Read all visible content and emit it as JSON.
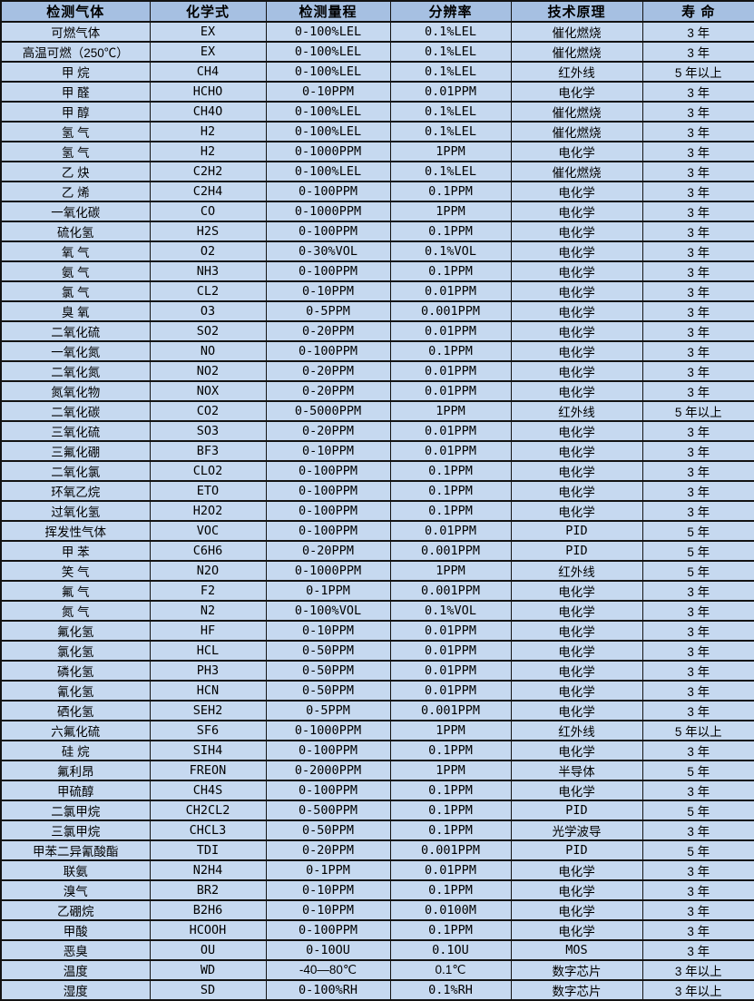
{
  "colors": {
    "header_bg": "#a6c0e2",
    "row_bg": "#c6d9f0",
    "border": "#131313"
  },
  "table": {
    "headers": [
      "检测气体",
      "化学式",
      "检测量程",
      "分辨率",
      "技术原理",
      "寿 命"
    ],
    "rows": [
      [
        "可燃气体",
        "EX",
        "0-100%LEL",
        "0.1%LEL",
        "催化燃烧",
        "3 年"
      ],
      [
        "高温可燃（250℃）",
        "EX",
        "0-100%LEL",
        "0.1%LEL",
        "催化燃烧",
        "3 年"
      ],
      [
        "甲 烷",
        "CH4",
        "0-100%LEL",
        "0.1%LEL",
        "红外线",
        "5 年以上"
      ],
      [
        "甲 醛",
        "HCHO",
        "0-10PPM",
        "0.01PPM",
        "电化学",
        "3 年"
      ],
      [
        "甲 醇",
        "CH4O",
        "0-100%LEL",
        "0.1%LEL",
        "催化燃烧",
        "3 年"
      ],
      [
        "氢 气",
        "H2",
        "0-100%LEL",
        "0.1%LEL",
        "催化燃烧",
        "3 年"
      ],
      [
        "氢 气",
        "H2",
        "0-1000PPM",
        "1PPM",
        "电化学",
        "3 年"
      ],
      [
        "乙 炔",
        "C2H2",
        "0-100%LEL",
        "0.1%LEL",
        "催化燃烧",
        "3 年"
      ],
      [
        "乙 烯",
        "C2H4",
        "0-100PPM",
        "0.1PPM",
        "电化学",
        "3 年"
      ],
      [
        "一氧化碳",
        "CO",
        "0-1000PPM",
        "1PPM",
        "电化学",
        "3 年"
      ],
      [
        "硫化氢",
        "H2S",
        "0-100PPM",
        "0.1PPM",
        "电化学",
        "3 年"
      ],
      [
        "氧 气",
        "O2",
        "0-30%VOL",
        "0.1%VOL",
        "电化学",
        "3 年"
      ],
      [
        "氨 气",
        "NH3",
        "0-100PPM",
        "0.1PPM",
        "电化学",
        "3 年"
      ],
      [
        "氯 气",
        "CL2",
        "0-10PPM",
        "0.01PPM",
        "电化学",
        "3 年"
      ],
      [
        "臭 氧",
        "O3",
        "0-5PPM",
        "0.001PPM",
        "电化学",
        "3 年"
      ],
      [
        "二氧化硫",
        "SO2",
        "0-20PPM",
        "0.01PPM",
        "电化学",
        "3 年"
      ],
      [
        "一氧化氮",
        "NO",
        "0-100PPM",
        "0.1PPM",
        "电化学",
        "3 年"
      ],
      [
        "二氧化氮",
        "NO2",
        "0-20PPM",
        "0.01PPM",
        "电化学",
        "3 年"
      ],
      [
        "氮氧化物",
        "NOX",
        "0-20PPM",
        "0.01PPM",
        "电化学",
        "3 年"
      ],
      [
        "二氧化碳",
        "CO2",
        "0-5000PPM",
        "1PPM",
        "红外线",
        "5 年以上"
      ],
      [
        "三氧化硫",
        "SO3",
        "0-20PPM",
        "0.01PPM",
        "电化学",
        "3 年"
      ],
      [
        "三氟化硼",
        "BF3",
        "0-10PPM",
        "0.01PPM",
        "电化学",
        "3 年"
      ],
      [
        "二氧化氯",
        "CLO2",
        "0-100PPM",
        "0.1PPM",
        "电化学",
        "3 年"
      ],
      [
        "环氧乙烷",
        "ETO",
        "0-100PPM",
        "0.1PPM",
        "电化学",
        "3 年"
      ],
      [
        "过氧化氢",
        "H2O2",
        "0-100PPM",
        "0.1PPM",
        "电化学",
        "3 年"
      ],
      [
        "挥发性气体",
        "VOC",
        "0-100PPM",
        "0.01PPM",
        "PID",
        "5 年"
      ],
      [
        "甲 苯",
        "C6H6",
        "0-20PPM",
        "0.001PPM",
        "PID",
        "5 年"
      ],
      [
        "笑 气",
        "N2O",
        "0-1000PPM",
        "1PPM",
        "红外线",
        "5 年"
      ],
      [
        "氟 气",
        "F2",
        "0-1PPM",
        "0.001PPM",
        "电化学",
        "3 年"
      ],
      [
        "氮 气",
        "N2",
        "0-100%VOL",
        "0.1%VOL",
        "电化学",
        "3 年"
      ],
      [
        "氟化氢",
        "HF",
        "0-10PPM",
        "0.01PPM",
        "电化学",
        "3 年"
      ],
      [
        "氯化氢",
        "HCL",
        "0-50PPM",
        "0.01PPM",
        "电化学",
        "3 年"
      ],
      [
        "磷化氢",
        "PH3",
        "0-50PPM",
        "0.01PPM",
        "电化学",
        "3 年"
      ],
      [
        "氰化氢",
        "HCN",
        "0-50PPM",
        "0.01PPM",
        "电化学",
        "3 年"
      ],
      [
        "硒化氢",
        "SEH2",
        "0-5PPM",
        "0.001PPM",
        "电化学",
        "3 年"
      ],
      [
        "六氟化硫",
        "SF6",
        "0-1000PPM",
        "1PPM",
        "红外线",
        "5 年以上"
      ],
      [
        "硅 烷",
        "SIH4",
        "0-100PPM",
        "0.1PPM",
        "电化学",
        "3 年"
      ],
      [
        "氟利昂",
        "FREON",
        "0-2000PPM",
        "1PPM",
        "半导体",
        "5 年"
      ],
      [
        "甲硫醇",
        "CH4S",
        "0-100PPM",
        "0.1PPM",
        "电化学",
        "3 年"
      ],
      [
        "二氯甲烷",
        "CH2CL2",
        "0-500PPM",
        "0.1PPM",
        "PID",
        "5 年"
      ],
      [
        "三氯甲烷",
        "CHCL3",
        "0-50PPM",
        "0.1PPM",
        "光学波导",
        "3 年"
      ],
      [
        "甲苯二异氰酸酯",
        "TDI",
        "0-20PPM",
        "0.001PPM",
        "PID",
        "5 年"
      ],
      [
        "联氨",
        "N2H4",
        "0-1PPM",
        "0.01PPM",
        "电化学",
        "3 年"
      ],
      [
        "溴气",
        "BR2",
        "0-10PPM",
        "0.1PPM",
        "电化学",
        "3 年"
      ],
      [
        "乙硼烷",
        "B2H6",
        "0-10PPM",
        "0.0100M",
        "电化学",
        "3 年"
      ],
      [
        "甲酸",
        "HCOOH",
        "0-100PPM",
        "0.1PPM",
        "电化学",
        "3 年"
      ],
      [
        "恶臭",
        "OU",
        "0-10OU",
        "0.1OU",
        "MOS",
        "3 年"
      ],
      [
        "温度",
        "WD",
        "-40—80℃",
        "0.1℃",
        "数字芯片",
        "3 年以上"
      ],
      [
        "湿度",
        "SD",
        "0-100%RH",
        "0.1%RH",
        "数字芯片",
        "3 年以上"
      ]
    ]
  }
}
